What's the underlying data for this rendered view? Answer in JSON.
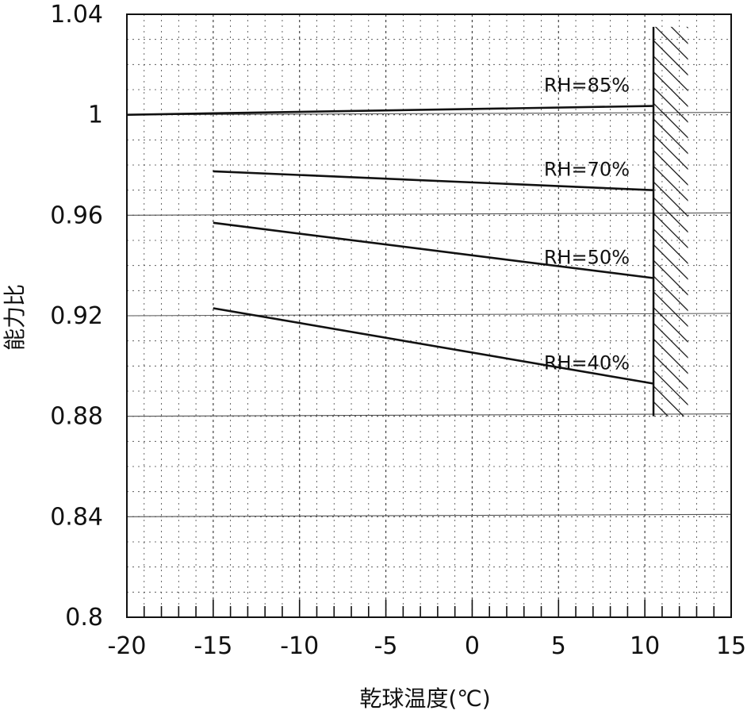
{
  "chart_data": {
    "type": "line",
    "xlabel": "乾球温度(℃)",
    "ylabel": "能力比",
    "xlim": [
      -20,
      15
    ],
    "ylim": [
      0.8,
      1.04
    ],
    "x_ticks": [
      -20,
      -15,
      -10,
      -5,
      0,
      5,
      10,
      15
    ],
    "x_tick_labels": [
      "-20",
      "-15",
      "-10",
      "-5",
      "0",
      "5",
      "10",
      "15"
    ],
    "y_ticks": [
      0.8,
      0.84,
      0.88,
      0.92,
      0.96,
      1,
      1.04
    ],
    "y_tick_labels": [
      "0.8",
      "0.84",
      "0.88",
      "0.92",
      "0.96",
      "1",
      "1.04"
    ],
    "grid": true,
    "series": [
      {
        "name": "RH=85%",
        "x": [
          -20,
          10.5
        ],
        "y": [
          1.0,
          1.0035
        ]
      },
      {
        "name": "RH=70%",
        "x": [
          -15,
          10.5
        ],
        "y": [
          0.9775,
          0.97
        ]
      },
      {
        "name": "RH=50%",
        "x": [
          -15,
          10.5
        ],
        "y": [
          0.957,
          0.935
        ]
      },
      {
        "name": "RH=40%",
        "x": [
          -15,
          10.5
        ],
        "y": [
          0.923,
          0.893
        ]
      }
    ],
    "limit_region": {
      "x_start": 10.5,
      "x_end": 12.5,
      "y_range": [
        0.88,
        1.035
      ],
      "pattern": "diagonal-hatch"
    },
    "colors": {
      "line": "#111111",
      "grid_dotted": "#444444",
      "background": "#ffffff"
    }
  }
}
